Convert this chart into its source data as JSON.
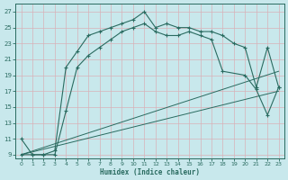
{
  "xlabel": "Humidex (Indice chaleur)",
  "bg_color": "#c8e8ec",
  "line_color": "#2a6b60",
  "grid_color": "#b0d8dc",
  "xlim": [
    -0.5,
    23.5
  ],
  "ylim": [
    8.5,
    28
  ],
  "yticks": [
    9,
    11,
    13,
    15,
    17,
    19,
    21,
    23,
    25,
    27
  ],
  "xticks": [
    0,
    1,
    2,
    3,
    4,
    5,
    6,
    7,
    8,
    9,
    10,
    11,
    12,
    13,
    14,
    15,
    16,
    17,
    18,
    19,
    20,
    21,
    22,
    23
  ],
  "curve1_x": [
    0,
    1,
    2,
    3,
    4,
    5,
    6,
    7,
    8,
    9,
    10,
    11,
    12,
    13,
    14,
    15,
    16,
    17,
    18,
    19,
    20,
    21,
    22,
    23
  ],
  "curve1_y": [
    11,
    9,
    9,
    9.5,
    20,
    22,
    24,
    24.5,
    25,
    25.5,
    26,
    27,
    25,
    25.5,
    25,
    25,
    24.5,
    24.5,
    24,
    23,
    22.5,
    17.5,
    22.5,
    17.5
  ],
  "curve2_x": [
    0,
    1,
    2,
    3,
    4,
    5,
    6,
    7,
    8,
    9,
    10,
    11,
    12,
    13,
    14,
    15,
    16,
    17,
    18,
    20,
    21,
    22,
    23
  ],
  "curve2_y": [
    9,
    9,
    9,
    9,
    14.5,
    20,
    21.5,
    22.5,
    23.5,
    24.5,
    25,
    25.5,
    24.5,
    24,
    24,
    24.5,
    24,
    23.5,
    19.5,
    19,
    17.2,
    14,
    17.5
  ],
  "line3_x": [
    0,
    23
  ],
  "line3_y": [
    9,
    19.5
  ],
  "line4_x": [
    0,
    23
  ],
  "line4_y": [
    9,
    17.0
  ]
}
